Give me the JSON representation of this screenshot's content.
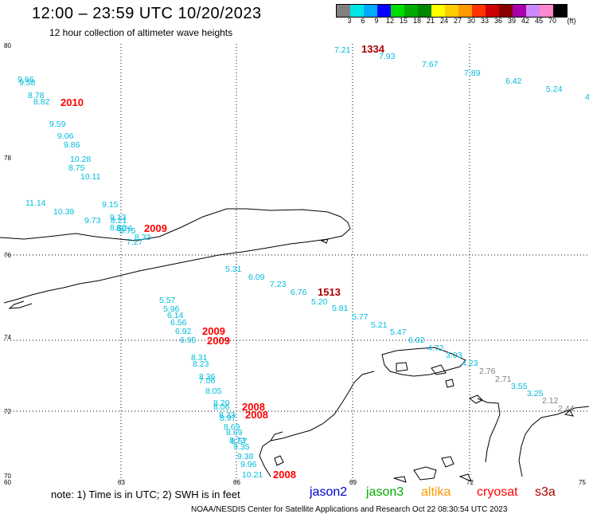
{
  "header": {
    "title": "12:00 – 23:59 UTC 10/20/2023",
    "subtitle": "12 hour collection of altimeter wave heights"
  },
  "colorbar": {
    "colors": [
      "#808080",
      "#00e5e5",
      "#00aaff",
      "#0000ff",
      "#00dd00",
      "#00aa00",
      "#008800",
      "#ffff00",
      "#ffcc00",
      "#ff9900",
      "#ff3300",
      "#cc0000",
      "#880000",
      "#aa00aa",
      "#cc88ff",
      "#ff88cc",
      "#000000"
    ],
    "ticks": [
      "3",
      "6",
      "9",
      "12",
      "15",
      "18",
      "21",
      "24",
      "27",
      "30",
      "33",
      "36",
      "39",
      "42",
      "45",
      "70"
    ],
    "unit": "(ft)"
  },
  "axes": {
    "lon_labels": [
      "60",
      "63",
      "66",
      "69",
      "72",
      "75"
    ],
    "lat_labels": [
      "80",
      "78",
      "76",
      "74",
      "72",
      "70"
    ]
  },
  "satellite_colors": {
    "jason2": "#0000cc",
    "jason3": "#00aa00",
    "altika": "#ff9900",
    "cryosat": "#ff0000",
    "s3a": "#aa0000",
    "low": "#808080",
    "light": "#00bbdd"
  },
  "readings": [
    {
      "v": "7.21",
      "c": "light"
    },
    {
      "v": "7.93",
      "c": "light"
    },
    {
      "v": "7.67",
      "c": "light"
    },
    {
      "v": "7.89",
      "c": "light"
    },
    {
      "v": "6.42",
      "c": "light"
    },
    {
      "v": "5.24",
      "c": "light"
    },
    {
      "v": "4",
      "c": "light"
    },
    {
      "v": "9.66",
      "c": "light"
    },
    {
      "v": "9.58",
      "c": "dark"
    },
    {
      "v": "8.78",
      "c": "light"
    },
    {
      "v": "8.82",
      "c": "light"
    },
    {
      "v": "9.59",
      "c": "dark"
    },
    {
      "v": "9.06",
      "c": "dark"
    },
    {
      "v": "9.86",
      "c": "dark"
    },
    {
      "v": "10.28",
      "c": "dark"
    },
    {
      "v": "8.75",
      "c": "light"
    },
    {
      "v": "10.11",
      "c": "dark"
    },
    {
      "v": "11.14",
      "c": "dark"
    },
    {
      "v": "10.39",
      "c": "dark"
    },
    {
      "v": "9.15",
      "c": "dark"
    },
    {
      "v": "9.73",
      "c": "dark"
    },
    {
      "v": "9.13",
      "c": "dark"
    },
    {
      "v": "8.21",
      "c": "dark"
    },
    {
      "v": "8.86",
      "c": "dark"
    },
    {
      "v": "8.26",
      "c": "dark"
    },
    {
      "v": "8.75",
      "c": "dark"
    },
    {
      "v": "8.33",
      "c": "light"
    },
    {
      "v": "7.27",
      "c": "light"
    },
    {
      "v": "5.31",
      "c": "light"
    },
    {
      "v": "6.09",
      "c": "light"
    },
    {
      "v": "7.23",
      "c": "light"
    },
    {
      "v": "6.76",
      "c": "light"
    },
    {
      "v": "5.20",
      "c": "light"
    },
    {
      "v": "5.81",
      "c": "light"
    },
    {
      "v": "5.77",
      "c": "light"
    },
    {
      "v": "5.21",
      "c": "light"
    },
    {
      "v": "5.47",
      "c": "light"
    },
    {
      "v": "6.02",
      "c": "light"
    },
    {
      "v": "4.72",
      "c": "light"
    },
    {
      "v": "3.03",
      "c": "light"
    },
    {
      "v": "4.23",
      "c": "light"
    },
    {
      "v": "2.76",
      "c": "low"
    },
    {
      "v": "2.71",
      "c": "low"
    },
    {
      "v": "3.55",
      "c": "light"
    },
    {
      "v": "3.25",
      "c": "light"
    },
    {
      "v": "2.12",
      "c": "low"
    },
    {
      "v": "2.44",
      "c": "low"
    },
    {
      "v": "5.57",
      "c": "light"
    },
    {
      "v": "5.96",
      "c": "light"
    },
    {
      "v": "6.14",
      "c": "light"
    },
    {
      "v": "6.56",
      "c": "light"
    },
    {
      "v": "6.92",
      "c": "light"
    },
    {
      "v": "6.95",
      "c": "light"
    },
    {
      "v": "8.31",
      "c": "light"
    },
    {
      "v": "8.23",
      "c": "light"
    },
    {
      "v": "8.36",
      "c": "light"
    },
    {
      "v": "7.06",
      "c": "light"
    },
    {
      "v": "8.05",
      "c": "light"
    },
    {
      "v": "8.20",
      "c": "light"
    },
    {
      "v": "8.06",
      "c": "light"
    },
    {
      "v": "8.33",
      "c": "light"
    },
    {
      "v": "8.97",
      "c": "light"
    },
    {
      "v": "8.69",
      "c": "dark"
    },
    {
      "v": "8.69",
      "c": "dark"
    },
    {
      "v": "8.73",
      "c": "dark"
    },
    {
      "v": "8.57",
      "c": "dark"
    },
    {
      "v": "9.35",
      "c": "dark"
    },
    {
      "v": "9.38",
      "c": "dark"
    },
    {
      "v": "9.96",
      "c": "dark"
    },
    {
      "v": "10.21",
      "c": "dark"
    }
  ],
  "hours": [
    {
      "v": "1334",
      "c": "s3a"
    },
    {
      "v": "2010",
      "c": "cryosat"
    },
    {
      "v": "2009",
      "c": "cryosat"
    },
    {
      "v": "1513",
      "c": "s3a"
    },
    {
      "v": "2009",
      "c": "cryosat"
    },
    {
      "v": "2009",
      "c": "cryosat"
    },
    {
      "v": "2008",
      "c": "cryosat"
    },
    {
      "v": "2008",
      "c": "cryosat"
    },
    {
      "v": "2008",
      "c": "cryosat"
    }
  ],
  "footer": {
    "note": "note:  1) Time is in UTC;  2) SWH is in feet",
    "legend": [
      "jason2",
      "jason3",
      "altika",
      "cryosat",
      "s3a"
    ],
    "credit": "NOAA/NESDIS Center for Satellite Applications and Research     Oct 22 08:30:54 UTC 2023"
  }
}
